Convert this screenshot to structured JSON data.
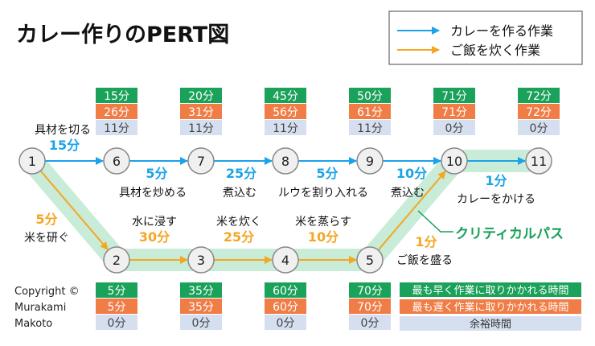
{
  "title": "カレー作りのPERT図",
  "legend": {
    "curry_label": "カレーを作る作業",
    "rice_label": "ご飯を炊く作業",
    "curry_color": "#1aa3e8",
    "rice_color": "#f5a623"
  },
  "critical_path_label": "クリティカルパス",
  "critical_path_color": "#c8ecd7",
  "critical_text_color": "#16a05a",
  "copyright": [
    "Copyright ©",
    "Murakami",
    "Makoto"
  ],
  "time_legend": {
    "earliest": "最も早く作業に取りかかれる時間",
    "latest": "最も遅く作業に取りかかれる時間",
    "slack": "余裕時間"
  },
  "colors": {
    "earliest": "#1aa15a",
    "latest": "#f07c46",
    "slack": "#d6dff0"
  },
  "nodes": [
    {
      "id": "1",
      "label": "1"
    },
    {
      "id": "2",
      "label": "2",
      "times": [
        "5分",
        "5分",
        "0分"
      ]
    },
    {
      "id": "3",
      "label": "3",
      "times": [
        "35分",
        "35分",
        "0分"
      ]
    },
    {
      "id": "4",
      "label": "4",
      "times": [
        "60分",
        "60分",
        "0分"
      ]
    },
    {
      "id": "5",
      "label": "5",
      "times": [
        "70分",
        "70分",
        "0分"
      ]
    },
    {
      "id": "6",
      "label": "6",
      "times": [
        "15分",
        "26分",
        "11分"
      ]
    },
    {
      "id": "7",
      "label": "7",
      "times": [
        "20分",
        "31分",
        "11分"
      ]
    },
    {
      "id": "8",
      "label": "8",
      "times": [
        "45分",
        "56分",
        "11分"
      ]
    },
    {
      "id": "9",
      "label": "9",
      "times": [
        "50分",
        "61分",
        "11分"
      ]
    },
    {
      "id": "10",
      "label": "10",
      "times": [
        "71分",
        "71分",
        "0分"
      ]
    },
    {
      "id": "11",
      "label": "11",
      "times": [
        "72分",
        "72分",
        "0分"
      ]
    }
  ],
  "tasks": [
    {
      "from": "1",
      "to": "6",
      "name": "具材を切る",
      "duration": "15分",
      "kind": "curry"
    },
    {
      "from": "6",
      "to": "7",
      "name": "具材を炒める",
      "duration": "5分",
      "kind": "curry"
    },
    {
      "from": "7",
      "to": "8",
      "name": "煮込む",
      "duration": "25分",
      "kind": "curry"
    },
    {
      "from": "8",
      "to": "9",
      "name": "ルウを割り入れる",
      "duration": "5分",
      "kind": "curry"
    },
    {
      "from": "9",
      "to": "10",
      "name": "煮込む",
      "duration": "10分",
      "kind": "curry"
    },
    {
      "from": "10",
      "to": "11",
      "name": "カレーをかける",
      "duration": "1分",
      "kind": "curry"
    },
    {
      "from": "1",
      "to": "2",
      "name": "米を研ぐ",
      "duration": "5分",
      "kind": "rice"
    },
    {
      "from": "2",
      "to": "3",
      "name": "水に浸す",
      "duration": "30分",
      "kind": "rice"
    },
    {
      "from": "3",
      "to": "4",
      "name": "米を炊く",
      "duration": "25分",
      "kind": "rice"
    },
    {
      "from": "4",
      "to": "5",
      "name": "米を蒸らす",
      "duration": "10分",
      "kind": "rice"
    },
    {
      "from": "5",
      "to": "10",
      "name": "ご飯を盛る",
      "duration": "1分",
      "kind": "rice"
    }
  ]
}
